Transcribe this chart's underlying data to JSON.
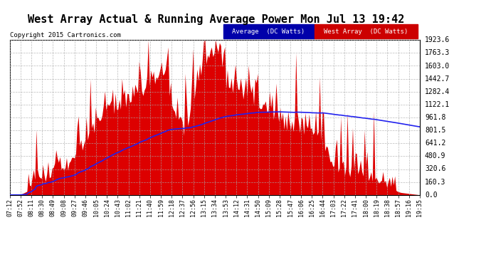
{
  "title": "West Array Actual & Running Average Power Mon Jul 13 19:42",
  "copyright": "Copyright 2015 Cartronics.com",
  "legend_label1": "Average  (DC Watts)",
  "legend_label2": "West Array  (DC Watts)",
  "fill_color": "#dd0000",
  "line_color": "#2222ee",
  "legend_bg1": "#0000bb",
  "legend_bg2": "#cc0000",
  "plot_bg": "#ffffff",
  "fig_bg": "#ffffff",
  "grid_color": "#aaaaaa",
  "yticks": [
    0.0,
    160.3,
    320.6,
    480.9,
    641.2,
    801.5,
    961.8,
    1122.1,
    1282.4,
    1442.7,
    1603.0,
    1763.3,
    1923.6
  ],
  "xtick_labels": [
    "07:12",
    "07:52",
    "08:11",
    "08:30",
    "08:49",
    "09:08",
    "09:27",
    "09:46",
    "10:05",
    "10:24",
    "10:43",
    "11:02",
    "11:21",
    "11:40",
    "11:59",
    "12:18",
    "12:37",
    "12:56",
    "13:15",
    "13:34",
    "13:53",
    "14:12",
    "14:31",
    "14:50",
    "15:09",
    "15:28",
    "15:47",
    "16:06",
    "16:25",
    "16:44",
    "17:03",
    "17:22",
    "17:41",
    "18:00",
    "18:19",
    "18:38",
    "18:57",
    "19:16",
    "19:35"
  ],
  "ymax": 1923.6,
  "ymin": 0.0,
  "title_fontsize": 11,
  "label_fontsize": 7,
  "xtick_fontsize": 6
}
